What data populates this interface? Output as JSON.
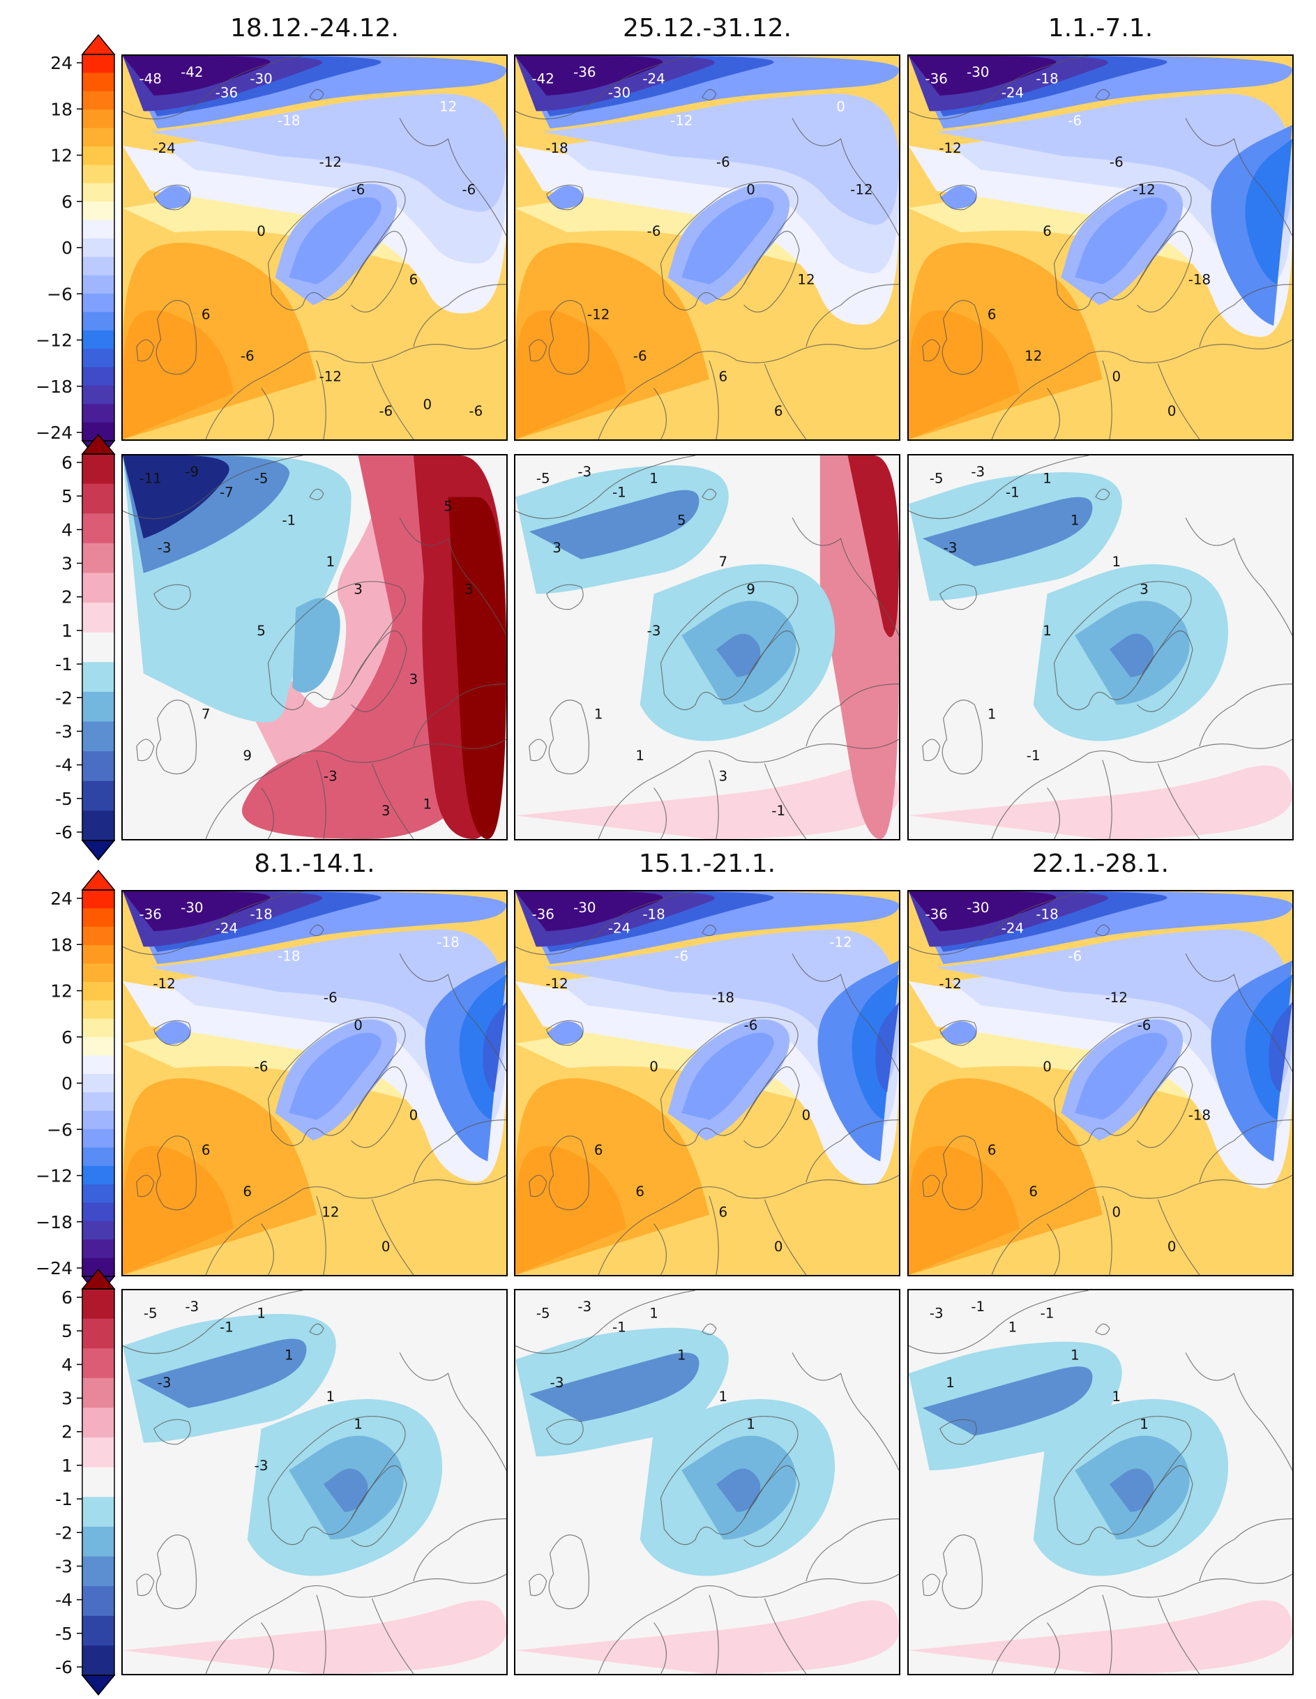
{
  "figure": {
    "rows": [
      {
        "type": "temperature",
        "titles": [
          "18.12.-24.12.",
          "25.12.-31.12.",
          "1.1.-7.1."
        ]
      },
      {
        "type": "anomaly"
      },
      {
        "type": "temperature",
        "titles": [
          "8.1.-14.1.",
          "15.1.-21.1.",
          "22.1.-28.1."
        ]
      },
      {
        "type": "anomaly"
      }
    ]
  },
  "colorbars": {
    "temperature": {
      "ticks": [
        "24",
        "18",
        "12",
        "6",
        "0",
        "−6",
        "−12",
        "−18",
        "−24"
      ],
      "colors_top_to_bottom": [
        "#ff2a00",
        "#ff5a00",
        "#ff7a10",
        "#ff9a20",
        "#ffb030",
        "#ffc848",
        "#ffdc70",
        "#fff0a8",
        "#fffad4",
        "#f0f2ff",
        "#d8e0ff",
        "#bccbff",
        "#9fb6ff",
        "#7fa0ff",
        "#5a8cf5",
        "#2f7af0",
        "#3a62dc",
        "#3f4bc8",
        "#4a3ab0",
        "#4a1e96",
        "#3f0a80"
      ],
      "ends": {
        "top": "#ff2a00",
        "bottom": "#3f0a80"
      }
    },
    "anomaly": {
      "ticks": [
        "6",
        "5",
        "4",
        "3",
        "2",
        "1",
        "-1",
        "-2",
        "-3",
        "-4",
        "-5",
        "-6"
      ],
      "colors_top_to_bottom": [
        "#b2182b",
        "#c93a52",
        "#dc5c76",
        "#e9879a",
        "#f4b0c0",
        "#fbd5df",
        "#f5f5f5",
        "#a3dcec",
        "#74b7de",
        "#5b8fd1",
        "#4a6ec3",
        "#2f45a6",
        "#1c2a86"
      ],
      "ends": {
        "top": "#8b0000",
        "bottom": "#08147a"
      }
    }
  },
  "panels": {
    "temperature": [
      {
        "contour_labels": [
          "-48",
          "-42",
          "-36",
          "-30",
          "-24",
          "-18",
          "-12",
          "-6",
          "0",
          "6",
          "-6",
          "-12",
          "-6",
          "6",
          "12",
          "-6",
          "0",
          "-6"
        ]
      },
      {
        "contour_labels": [
          "-42",
          "-36",
          "-30",
          "-24",
          "-18",
          "-12",
          "-6",
          "0",
          "-6",
          "-12",
          "-6",
          "6",
          "6",
          "12",
          "0",
          "-12"
        ]
      },
      {
        "contour_labels": [
          "-36",
          "-30",
          "-24",
          "-18",
          "-12",
          "-6",
          "-6",
          "-12",
          "6",
          "6",
          "12",
          "0",
          "0",
          "-18"
        ]
      },
      {
        "contour_labels": [
          "-36",
          "-30",
          "-24",
          "-18",
          "-12",
          "-18",
          "-6",
          "0",
          "-6",
          "6",
          "6",
          "12",
          "0",
          "0",
          "-18"
        ]
      },
      {
        "contour_labels": [
          "-36",
          "-30",
          "-24",
          "-18",
          "-12",
          "-6",
          "-18",
          "-6",
          "0",
          "6",
          "6",
          "6",
          "0",
          "0",
          "-12"
        ]
      },
      {
        "contour_labels": [
          "-36",
          "-30",
          "-24",
          "-18",
          "-12",
          "-6",
          "-12",
          "-6",
          "0",
          "6",
          "6",
          "0",
          "0",
          "-18"
        ]
      }
    ],
    "anomaly": [
      {
        "contour_labels": [
          "-11",
          "-9",
          "-7",
          "-5",
          "-3",
          "-1",
          "1",
          "3",
          "5",
          "7",
          "9",
          "-3",
          "3",
          "3",
          "5",
          "3",
          "1"
        ]
      },
      {
        "contour_labels": [
          "-5",
          "-3",
          "-1",
          "1",
          "3",
          "5",
          "7",
          "9",
          "-3",
          "1",
          "1",
          "3",
          "-1"
        ]
      },
      {
        "contour_labels": [
          "-5",
          "-3",
          "-1",
          "1",
          "-3",
          "1",
          "1",
          "3",
          "1",
          "1",
          "-1"
        ]
      },
      {
        "contour_labels": [
          "-5",
          "-3",
          "-1",
          "1",
          "-3",
          "1",
          "1",
          "1",
          "-3"
        ]
      },
      {
        "contour_labels": [
          "-5",
          "-3",
          "-1",
          "1",
          "-3",
          "1",
          "1",
          "1"
        ]
      },
      {
        "contour_labels": [
          "-3",
          "-1",
          "1",
          "-1",
          "1",
          "1",
          "1",
          "1"
        ]
      }
    ]
  }
}
